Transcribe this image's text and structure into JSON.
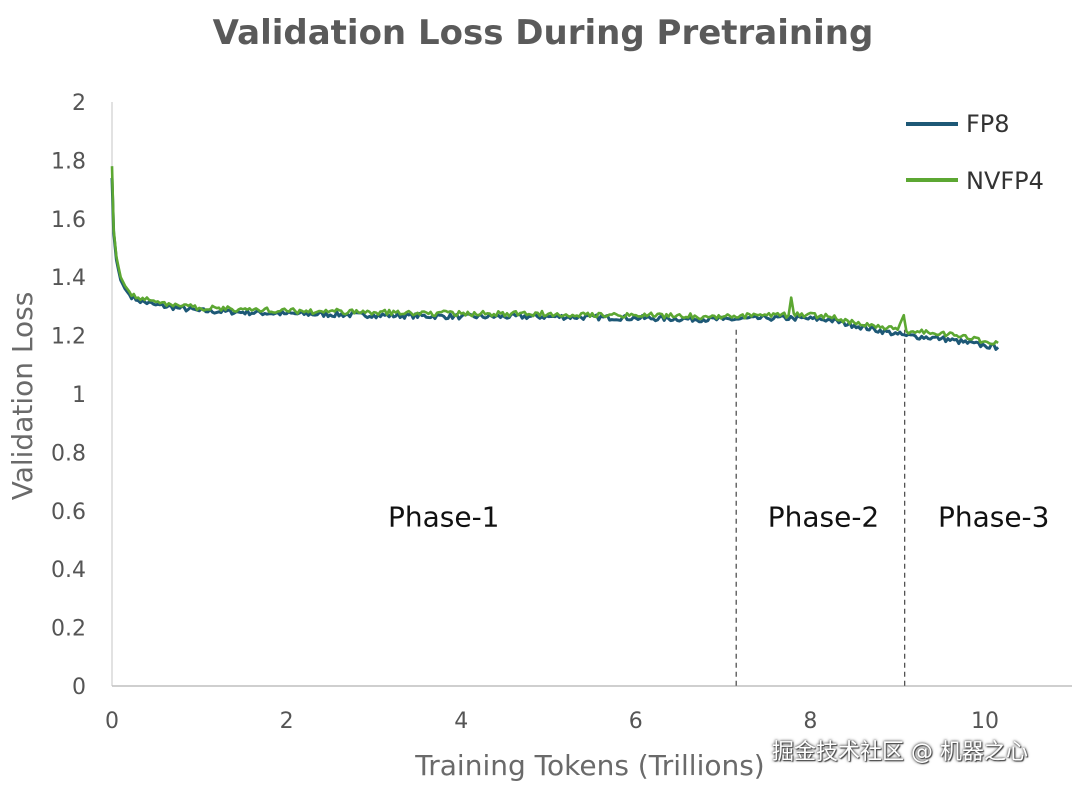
{
  "chart_data": {
    "type": "line",
    "title": "Validation Loss During Pretraining",
    "xlabel": "Training Tokens (Trillions)",
    "ylabel": "Validation Loss",
    "xlim": [
      0,
      11
    ],
    "ylim": [
      0,
      2
    ],
    "xticks": [
      0,
      2,
      4,
      6,
      8,
      10
    ],
    "yticks": [
      0,
      0.2,
      0.4,
      0.6,
      0.8,
      1,
      1.2,
      1.4,
      1.6,
      1.8,
      2
    ],
    "ytick_labels": [
      "0",
      "0.2",
      "0.4",
      "0.6",
      "0.8",
      "1",
      "1.2",
      "1.4",
      "1.6",
      "1.8",
      "2"
    ],
    "legend": [
      "FP8",
      "NVFP4"
    ],
    "legend_position": "top-right",
    "series": [
      {
        "name": "FP8",
        "color": "#1d5876",
        "x": [
          0,
          0.02,
          0.05,
          0.1,
          0.15,
          0.2,
          0.3,
          0.5,
          0.75,
          1,
          1.5,
          2,
          3,
          4,
          5,
          6,
          7,
          7.5,
          7.8,
          8.2,
          8.5,
          9.0,
          9.1,
          9.5,
          10,
          10.15
        ],
        "y": [
          1.74,
          1.55,
          1.46,
          1.39,
          1.36,
          1.34,
          1.32,
          1.305,
          1.295,
          1.285,
          1.28,
          1.275,
          1.27,
          1.265,
          1.265,
          1.26,
          1.255,
          1.26,
          1.26,
          1.255,
          1.235,
          1.205,
          1.2,
          1.19,
          1.165,
          1.16
        ]
      },
      {
        "name": "NVFP4",
        "color": "#5ca732",
        "x": [
          0,
          0.02,
          0.05,
          0.1,
          0.15,
          0.2,
          0.3,
          0.5,
          0.75,
          1,
          1.5,
          2,
          3,
          4,
          5,
          6,
          7,
          7.5,
          7.75,
          7.78,
          7.81,
          8.2,
          8.5,
          9.0,
          9.07,
          9.1,
          9.5,
          10,
          10.15
        ],
        "y": [
          1.78,
          1.56,
          1.47,
          1.4,
          1.37,
          1.35,
          1.33,
          1.315,
          1.305,
          1.295,
          1.29,
          1.285,
          1.28,
          1.275,
          1.275,
          1.27,
          1.265,
          1.27,
          1.27,
          1.33,
          1.275,
          1.265,
          1.245,
          1.22,
          1.27,
          1.215,
          1.21,
          1.18,
          1.175
        ]
      }
    ],
    "phase_boundaries": [
      7.15,
      9.08
    ],
    "annotations": [
      {
        "text": "Phase-1",
        "x": 3.8,
        "y": 0.58
      },
      {
        "text": "Phase-2",
        "x": 8.15,
        "y": 0.58
      },
      {
        "text": "Phase-3",
        "x": 10.1,
        "y": 0.58
      }
    ]
  },
  "watermark": "掘金技术社区 @ 机器之心"
}
